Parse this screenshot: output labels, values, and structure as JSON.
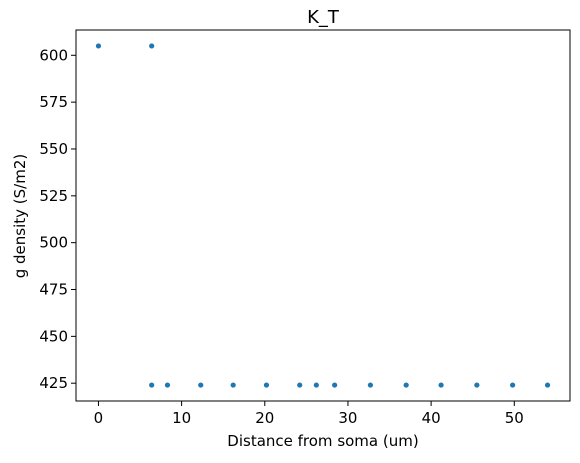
{
  "chart_data": {
    "type": "scatter",
    "title": "K_T",
    "xlabel": "Distance from soma (um)",
    "ylabel": "g density (S/m2)",
    "xlim": [
      -2.7,
      56.7
    ],
    "ylim": [
      415.5,
      613.5
    ],
    "xticks": [
      0,
      10,
      20,
      30,
      40,
      50
    ],
    "yticks": [
      425,
      450,
      475,
      500,
      525,
      550,
      575,
      600
    ],
    "grid": false,
    "marker_color": "#1f77b4",
    "series": [
      {
        "x": [
          0,
          6.4,
          6.4,
          8.3,
          12.3,
          16.2,
          20.2,
          24.2,
          26.2,
          28.4,
          32.7,
          37.0,
          41.2,
          45.5,
          49.8,
          54.0
        ],
        "y": [
          605,
          605,
          424,
          424,
          424,
          424,
          424,
          424,
          424,
          424,
          424,
          424,
          424,
          424,
          424,
          424
        ]
      }
    ]
  }
}
